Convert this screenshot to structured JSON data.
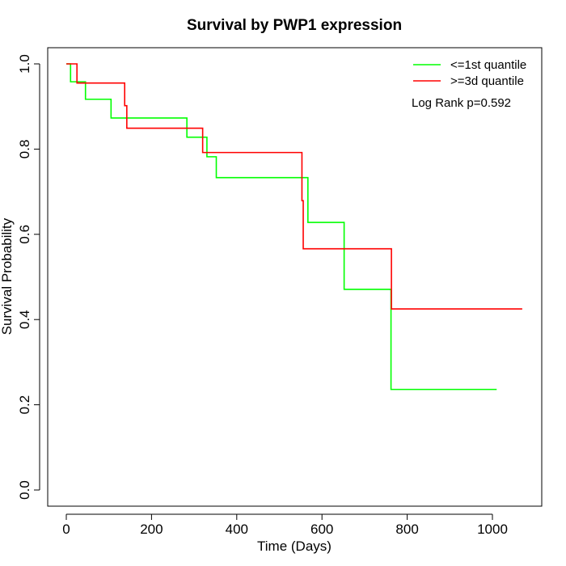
{
  "chart_data": {
    "type": "line",
    "step": true,
    "title": "Survival by PWP1 expression",
    "xlabel": "Time (Days)",
    "ylabel": "Survival Probability",
    "xlim": [
      0,
      1070
    ],
    "ylim": [
      0,
      1
    ],
    "xticks": [
      0,
      200,
      400,
      600,
      800,
      1000
    ],
    "yticks": [
      0.0,
      0.2,
      0.4,
      0.6,
      0.8,
      1.0
    ],
    "xtick_labels": [
      "0",
      "200",
      "400",
      "600",
      "800",
      "1000"
    ],
    "ytick_labels": [
      "0.0",
      "0.2",
      "0.4",
      "0.6",
      "0.8",
      "1.0"
    ],
    "legend_position": "top-right",
    "annotation": "Log Rank p=0.592",
    "series": [
      {
        "name": "<=1st quantile",
        "color": "#00ff00",
        "x": [
          0,
          10,
          45,
          105,
          283,
          330,
          352,
          567,
          652,
          762,
          1010
        ],
        "y": [
          1.0,
          0.958,
          0.917,
          0.873,
          0.828,
          0.782,
          0.733,
          0.628,
          0.471,
          0.236,
          0.236
        ]
      },
      {
        "name": ">=3d quantile",
        "color": "#ff0000",
        "x": [
          0,
          25,
          137,
          142,
          320,
          553,
          556,
          763,
          1070
        ],
        "y": [
          1.0,
          0.955,
          0.902,
          0.849,
          0.792,
          0.679,
          0.566,
          0.425,
          0.425
        ]
      }
    ]
  }
}
